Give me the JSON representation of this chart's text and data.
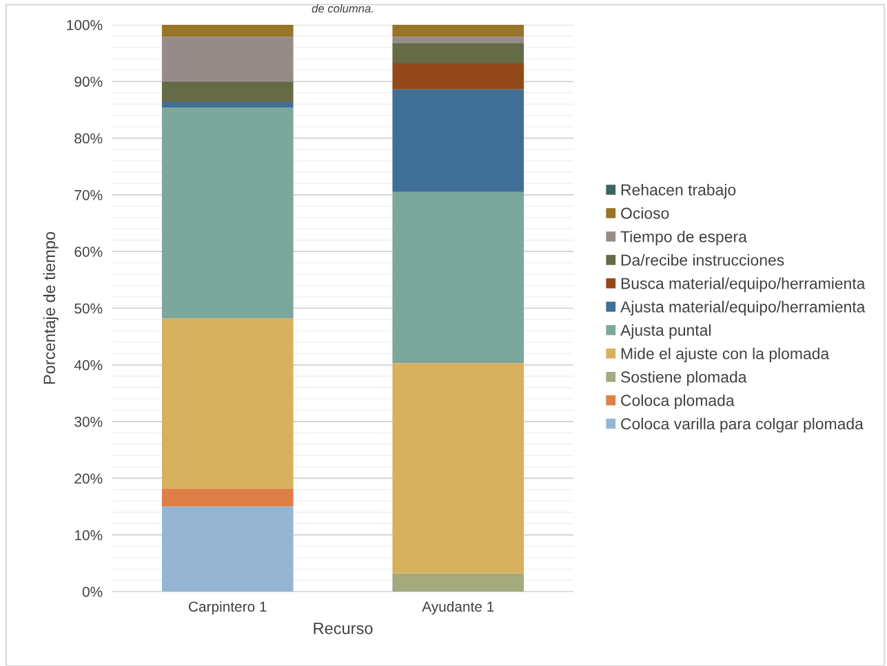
{
  "chart_data": {
    "type": "bar",
    "stacked": true,
    "title": "de columna.",
    "xlabel": "Recurso",
    "ylabel": "Porcentaje de tiempo",
    "categories": [
      "Carpintero 1",
      "Ayudante 1"
    ],
    "series": [
      {
        "name": "Coloca varilla para colgar plomada",
        "color": "#95b5d2",
        "values": [
          15,
          0
        ]
      },
      {
        "name": "Coloca plomada",
        "color": "#dd7f46",
        "values": [
          3.2,
          0
        ]
      },
      {
        "name": "Sostiene plomada",
        "color": "#a4aa7e",
        "values": [
          0,
          3.2
        ]
      },
      {
        "name": "Mide el ajuste con la plomada",
        "color": "#d8b15e",
        "values": [
          30,
          37.1
        ]
      },
      {
        "name": "Ajusta puntal",
        "color": "#7ca79c",
        "values": [
          37.2,
          30.2
        ]
      },
      {
        "name": "Ajusta material/equipo/herramienta",
        "color": "#3f6f97",
        "values": [
          1,
          18.1
        ]
      },
      {
        "name": "Busca material/equipo/herramienta",
        "color": "#93481a",
        "values": [
          0,
          4.6
        ]
      },
      {
        "name": "Da/recibe instrucciones",
        "color": "#656b47",
        "values": [
          3.6,
          3.6
        ]
      },
      {
        "name": "Tiempo de espera",
        "color": "#968b89",
        "values": [
          7.9,
          1.1
        ]
      },
      {
        "name": "Ocioso",
        "color": "#977426",
        "values": [
          2.1,
          2.1
        ]
      },
      {
        "name": "Rehacen trabajo",
        "color": "#3e6461",
        "values": [
          0,
          0
        ]
      }
    ],
    "ylim": [
      0,
      100
    ],
    "yticks": [
      {
        "value": 0,
        "label": "0%"
      },
      {
        "value": 10,
        "label": "10%"
      },
      {
        "value": 20,
        "label": "20%"
      },
      {
        "value": 30,
        "label": "30%"
      },
      {
        "value": 40,
        "label": "40%"
      },
      {
        "value": 50,
        "label": "50%"
      },
      {
        "value": 60,
        "label": "60%"
      },
      {
        "value": 70,
        "label": "70%"
      },
      {
        "value": 80,
        "label": "80%"
      },
      {
        "value": 90,
        "label": "90%"
      },
      {
        "value": 100,
        "label": "100%"
      }
    ],
    "grid": "y",
    "legend": "right"
  }
}
